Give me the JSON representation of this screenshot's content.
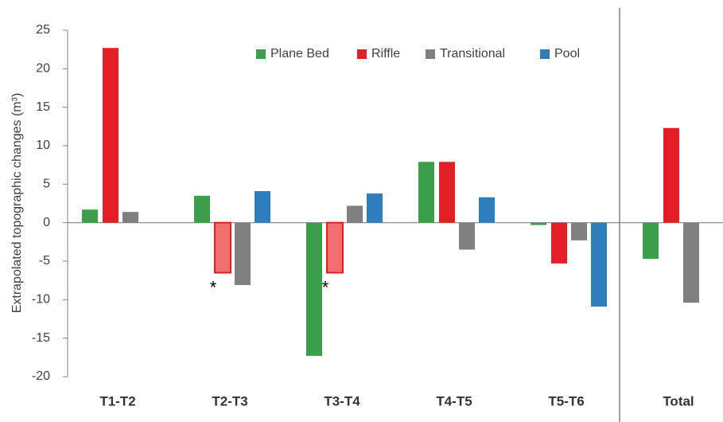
{
  "chart_data": {
    "type": "bar",
    "y_label": "Extrapolated topographic changes (m³)",
    "categories": [
      "T1-T2",
      "T2-T3",
      "T3-T4",
      "T4-T5",
      "T5-T6",
      "Total"
    ],
    "series": [
      {
        "name": "Plane Bed",
        "color": "#3a9e4a",
        "values": [
          1.7,
          3.5,
          -17.3,
          7.9,
          -0.3,
          -4.7
        ]
      },
      {
        "name": "Riffle",
        "color": "#e31e24",
        "values": [
          22.7,
          -6.5,
          -6.5,
          7.9,
          -5.3,
          12.3
        ],
        "flag": "*",
        "flag_color": "#f07070",
        "flagged": [
          false,
          true,
          true,
          false,
          false,
          false
        ]
      },
      {
        "name": "Transitional",
        "color": "#808080",
        "values": [
          1.4,
          -8.1,
          2.2,
          -3.5,
          -2.3,
          -10.4
        ]
      },
      {
        "name": "Pool",
        "color": "#2e7dbd",
        "values": [
          null,
          4.1,
          3.8,
          3.3,
          -10.9,
          null
        ]
      }
    ],
    "ylim": [
      -20,
      25
    ],
    "yticks": [
      -20,
      -15,
      -10,
      -5,
      0,
      5,
      10,
      15,
      20,
      25
    ],
    "grid": false,
    "legend": "top"
  }
}
